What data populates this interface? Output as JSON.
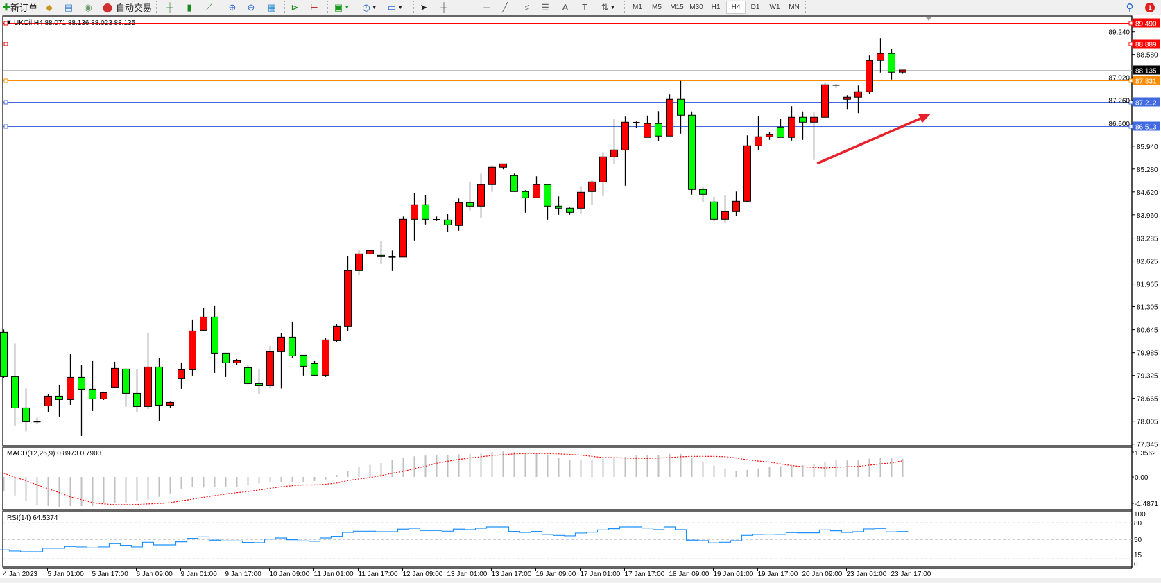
{
  "toolbar": {
    "new_order_label": "新订单",
    "auto_trading_label": "自动交易",
    "timeframes": [
      "M1",
      "M5",
      "M15",
      "M30",
      "H1",
      "H4",
      "D1",
      "W1",
      "MN"
    ],
    "selected_timeframe": "H4",
    "notification_count": "1",
    "icons": [
      "new-order-icon",
      "market-watch-icon",
      "navigator-icon",
      "signals-icon",
      "auto-trading-icon",
      "bar-chart-icon",
      "candlestick-icon",
      "line-chart-icon",
      "zoom-in-icon",
      "zoom-out-icon",
      "tile-windows-icon",
      "chart-shift-icon",
      "auto-scroll-icon",
      "indicators-icon",
      "periods-icon",
      "templates-icon",
      "cursor-icon",
      "crosshair-icon",
      "vertical-line-icon",
      "horizontal-line-icon",
      "trendline-icon",
      "fibonacci-icon",
      "fibonacci-fan-icon",
      "text-icon",
      "text-label-icon",
      "arrows-icon",
      "search-icon",
      "notification-icon"
    ]
  },
  "chart": {
    "title": "UKOil,H4  88.071 88.136 88.023 88.135",
    "colors": {
      "bull": "#ff0000",
      "bear": "#00ff00",
      "outline": "#000000",
      "background": "#ffffff"
    },
    "price_ticks": [
      "89.240",
      "88.580",
      "87.920",
      "87.260",
      "86.600",
      "85.940",
      "85.280",
      "84.620",
      "83.960",
      "83.285",
      "82.625",
      "81.965",
      "81.305",
      "80.645",
      "79.985",
      "79.325",
      "78.665",
      "78.005",
      "77.345"
    ],
    "horizontal_lines": [
      {
        "price": "89.490",
        "color": "#ff0000",
        "label_bg": "#ff0000"
      },
      {
        "price": "88.889",
        "color": "#ff0000",
        "label_bg": "#ff0000"
      },
      {
        "price": "88.135",
        "color": "#c0c0c0",
        "label_bg": "#000000",
        "current": true
      },
      {
        "price": "87.831",
        "color": "#ff8c00",
        "label_bg": "#ff8c00"
      },
      {
        "price": "87.212",
        "color": "#4169e1",
        "label_bg": "#4169e1"
      },
      {
        "price": "86.513",
        "color": "#4169e1",
        "label_bg": "#4169e1"
      }
    ],
    "time_labels": [
      "4 Jan 2023",
      "5 Jan 01:00",
      "5 Jan 17:00",
      "6 Jan 09:00",
      "9 Jan 01:00",
      "9 Jan 17:00",
      "10 Jan 09:00",
      "11 Jan 01:00",
      "11 Jan 17:00",
      "12 Jan 09:00",
      "13 Jan 01:00",
      "13 Jan 17:00",
      "16 Jan 09:00",
      "17 Jan 01:00",
      "17 Jan 17:00",
      "18 Jan 09:00",
      "19 Jan 01:00",
      "19 Jan 17:00",
      "20 Jan 09:00",
      "23 Jan 01:00",
      "23 Jan 17:00"
    ],
    "arrow_annotation": {
      "color": "#e8202a",
      "from": {
        "bar": 73.3,
        "price": 85.44
      },
      "to": {
        "bar": 83.5,
        "price": 86.86
      }
    }
  },
  "macd": {
    "label": "MACD(12,26,9) 0.8973 0.7903",
    "ticks": [
      "1.3562",
      "0.00",
      "-1.4871"
    ],
    "histogram_color": "#c0c0c0",
    "signal_color": "#ff0000"
  },
  "rsi": {
    "label": "RSI(14) 64.5374",
    "ticks": [
      "100",
      "80",
      "50",
      "15",
      "0"
    ],
    "levels": [
      80,
      50,
      15
    ],
    "line_color": "#1e90ff"
  },
  "chart_data": {
    "type": "candlestick",
    "symbol": "UKOil",
    "timeframe": "H4",
    "ylim": [
      77.345,
      89.49
    ],
    "ohlc": [
      [
        80.57,
        80.65,
        79.25,
        79.29
      ],
      [
        79.29,
        80.25,
        77.86,
        78.39
      ],
      [
        78.39,
        78.95,
        77.71,
        77.99
      ],
      [
        77.99,
        78.11,
        77.92,
        77.99
      ],
      [
        78.45,
        78.78,
        78.28,
        78.73
      ],
      [
        78.73,
        79.06,
        78.14,
        78.63
      ],
      [
        78.63,
        79.94,
        78.48,
        79.27
      ],
      [
        79.27,
        79.62,
        77.58,
        78.93
      ],
      [
        78.93,
        79.74,
        78.3,
        78.65
      ],
      [
        78.65,
        78.86,
        78.62,
        78.83
      ],
      [
        78.99,
        79.72,
        78.97,
        79.53
      ],
      [
        79.51,
        79.53,
        78.42,
        78.81
      ],
      [
        78.81,
        79.5,
        78.28,
        78.43
      ],
      [
        78.43,
        80.56,
        78.36,
        79.57
      ],
      [
        79.57,
        79.82,
        78.02,
        78.47
      ],
      [
        78.47,
        78.57,
        78.4,
        78.55
      ],
      [
        79.23,
        79.7,
        78.94,
        79.49
      ],
      [
        79.49,
        80.94,
        79.32,
        80.61
      ],
      [
        80.63,
        81.28,
        80.6,
        81.01
      ],
      [
        81.01,
        81.34,
        79.4,
        79.97
      ],
      [
        79.97,
        79.97,
        79.28,
        79.69
      ],
      [
        79.69,
        79.8,
        79.62,
        79.75
      ],
      [
        79.55,
        79.62,
        79.07,
        79.09
      ],
      [
        79.09,
        79.52,
        78.79,
        79.03
      ],
      [
        79.03,
        80.18,
        78.95,
        80.01
      ],
      [
        80.01,
        80.54,
        78.95,
        80.43
      ],
      [
        80.43,
        80.88,
        79.84,
        79.89
      ],
      [
        79.91,
        79.91,
        79.32,
        79.59
      ],
      [
        79.67,
        79.74,
        79.3,
        79.33
      ],
      [
        79.33,
        80.4,
        79.28,
        80.35
      ],
      [
        80.33,
        80.8,
        80.29,
        80.75
      ],
      [
        80.75,
        82.77,
        80.61,
        82.35
      ],
      [
        82.35,
        82.96,
        82.22,
        82.83
      ],
      [
        82.83,
        82.96,
        82.81,
        82.93
      ],
      [
        82.79,
        83.2,
        82.54,
        82.75
      ],
      [
        82.74,
        82.93,
        82.34,
        82.74
      ],
      [
        82.74,
        83.91,
        82.74,
        83.83
      ],
      [
        83.83,
        84.58,
        83.22,
        84.25
      ],
      [
        84.25,
        84.52,
        83.68,
        83.83
      ],
      [
        83.82,
        83.91,
        83.78,
        83.82
      ],
      [
        83.81,
        83.99,
        83.46,
        83.67
      ],
      [
        83.65,
        84.43,
        83.5,
        84.31
      ],
      [
        84.31,
        84.92,
        84.08,
        84.21
      ],
      [
        84.21,
        85.15,
        83.86,
        84.83
      ],
      [
        84.83,
        85.39,
        84.62,
        85.33
      ],
      [
        85.33,
        85.43,
        85.27,
        85.43
      ],
      [
        85.09,
        85.15,
        84.63,
        84.63
      ],
      [
        84.63,
        84.67,
        84.02,
        84.45
      ],
      [
        84.45,
        85.07,
        84.45,
        84.83
      ],
      [
        84.83,
        84.83,
        83.82,
        84.21
      ],
      [
        84.21,
        84.49,
        83.96,
        84.15
      ],
      [
        84.15,
        84.17,
        83.96,
        84.03
      ],
      [
        84.15,
        84.77,
        84.0,
        84.61
      ],
      [
        84.63,
        84.95,
        84.24,
        84.91
      ],
      [
        84.91,
        85.77,
        84.5,
        85.63
      ],
      [
        85.63,
        86.73,
        85.42,
        85.83
      ],
      [
        85.83,
        86.79,
        84.8,
        86.63
      ],
      [
        86.62,
        86.65,
        86.47,
        86.62
      ],
      [
        86.19,
        86.82,
        86.19,
        86.59
      ],
      [
        86.59,
        86.95,
        86.09,
        86.23
      ],
      [
        86.23,
        87.43,
        86.23,
        87.29
      ],
      [
        87.29,
        87.82,
        86.3,
        86.83
      ],
      [
        86.83,
        86.94,
        84.54,
        84.69
      ],
      [
        84.69,
        84.76,
        84.32,
        84.55
      ],
      [
        84.33,
        84.48,
        83.77,
        83.83
      ],
      [
        83.83,
        84.52,
        83.72,
        84.05
      ],
      [
        84.05,
        84.63,
        83.92,
        84.35
      ],
      [
        84.35,
        86.25,
        84.32,
        85.95
      ],
      [
        85.95,
        86.81,
        85.82,
        86.21
      ],
      [
        86.21,
        86.34,
        86.12,
        86.27
      ],
      [
        86.49,
        86.73,
        86.19,
        86.19
      ],
      [
        86.19,
        87.09,
        86.1,
        86.77
      ],
      [
        86.77,
        86.94,
        86.12,
        86.63
      ],
      [
        86.63,
        86.91,
        85.54,
        86.77
      ],
      [
        86.77,
        87.76,
        86.77,
        87.71
      ],
      [
        87.7,
        87.73,
        87.62,
        87.7
      ],
      [
        87.29,
        87.41,
        87.01,
        87.35
      ],
      [
        87.35,
        87.69,
        86.89,
        87.51
      ],
      [
        87.51,
        88.55,
        87.45,
        88.41
      ],
      [
        88.41,
        89.05,
        88.06,
        88.61
      ],
      [
        88.61,
        88.75,
        87.86,
        88.07
      ],
      [
        88.071,
        88.136,
        88.023,
        88.135
      ]
    ],
    "macd_hist": [
      -0.7,
      -0.91,
      -1.15,
      -1.36,
      -1.43,
      -1.49,
      -1.43,
      -1.43,
      -1.43,
      -1.3,
      -1.26,
      -1.26,
      -1.15,
      -1.11,
      -0.98,
      -0.81,
      -0.58,
      -0.5,
      -0.52,
      -0.5,
      -0.47,
      -0.5,
      -0.39,
      -0.32,
      -0.27,
      -0.24,
      -0.27,
      -0.24,
      -0.2,
      -0.13,
      0.1,
      0.3,
      0.5,
      0.59,
      0.68,
      0.82,
      0.93,
      1.01,
      1.05,
      1.07,
      1.09,
      1.11,
      1.13,
      1.16,
      1.22,
      1.26,
      1.22,
      1.15,
      1.13,
      1.07,
      0.95,
      0.84,
      0.86,
      0.82,
      0.9,
      0.93,
      0.99,
      1.05,
      1.09,
      1.07,
      1.13,
      1.13,
      0.92,
      0.75,
      0.56,
      0.42,
      0.31,
      0.35,
      0.42,
      0.49,
      0.53,
      0.56,
      0.58,
      0.64,
      0.73,
      0.81,
      0.81,
      0.81,
      0.9,
      0.95,
      0.95,
      0.8973
    ],
    "macd_signal": [
      0.18,
      -0.01,
      -0.18,
      -0.39,
      -0.58,
      -0.77,
      -0.98,
      -1.11,
      -1.26,
      -1.32,
      -1.36,
      -1.36,
      -1.35,
      -1.32,
      -1.3,
      -1.26,
      -1.17,
      -1.09,
      -1.0,
      -0.92,
      -0.84,
      -0.77,
      -0.72,
      -0.64,
      -0.56,
      -0.48,
      -0.43,
      -0.39,
      -0.39,
      -0.36,
      -0.3,
      -0.18,
      -0.1,
      -0.03,
      0.07,
      0.18,
      0.27,
      0.41,
      0.53,
      0.67,
      0.77,
      0.86,
      0.93,
      0.99,
      1.05,
      1.09,
      1.13,
      1.15,
      1.15,
      1.15,
      1.13,
      1.1,
      1.07,
      1.01,
      0.95,
      0.95,
      0.93,
      0.91,
      0.91,
      0.93,
      0.95,
      0.99,
      1.01,
      1.01,
      1.01,
      0.99,
      0.93,
      0.84,
      0.78,
      0.73,
      0.64,
      0.56,
      0.5,
      0.47,
      0.44,
      0.47,
      0.5,
      0.52,
      0.58,
      0.64,
      0.69,
      0.7903
    ],
    "macd_ylim": [
      -1.4871,
      1.3562
    ],
    "rsi": [
      31.3,
      29.2,
      27.9,
      27.9,
      34.2,
      34.2,
      37.5,
      36.7,
      35.0,
      36.7,
      42.5,
      39.6,
      36.7,
      45.0,
      40.4,
      40.4,
      45.8,
      52.1,
      55.0,
      48.8,
      47.5,
      47.5,
      44.6,
      44.2,
      50.8,
      52.9,
      49.6,
      47.5,
      46.7,
      52.9,
      55.8,
      62.9,
      65.0,
      65.0,
      64.2,
      64.2,
      68.8,
      70.4,
      66.3,
      66.3,
      65.0,
      68.8,
      67.9,
      70.4,
      72.9,
      72.9,
      64.6,
      62.9,
      64.6,
      59.2,
      57.5,
      56.7,
      61.7,
      63.3,
      67.5,
      69.6,
      72.9,
      72.9,
      70.8,
      67.9,
      72.9,
      67.9,
      48.8,
      47.9,
      43.8,
      45.0,
      47.9,
      57.5,
      59.2,
      59.6,
      59.2,
      62.5,
      62.1,
      62.1,
      67.5,
      65.8,
      62.9,
      64.2,
      69.2,
      70.0,
      63.8,
      64.5374
    ],
    "rsi_ylim": [
      0,
      100
    ]
  }
}
